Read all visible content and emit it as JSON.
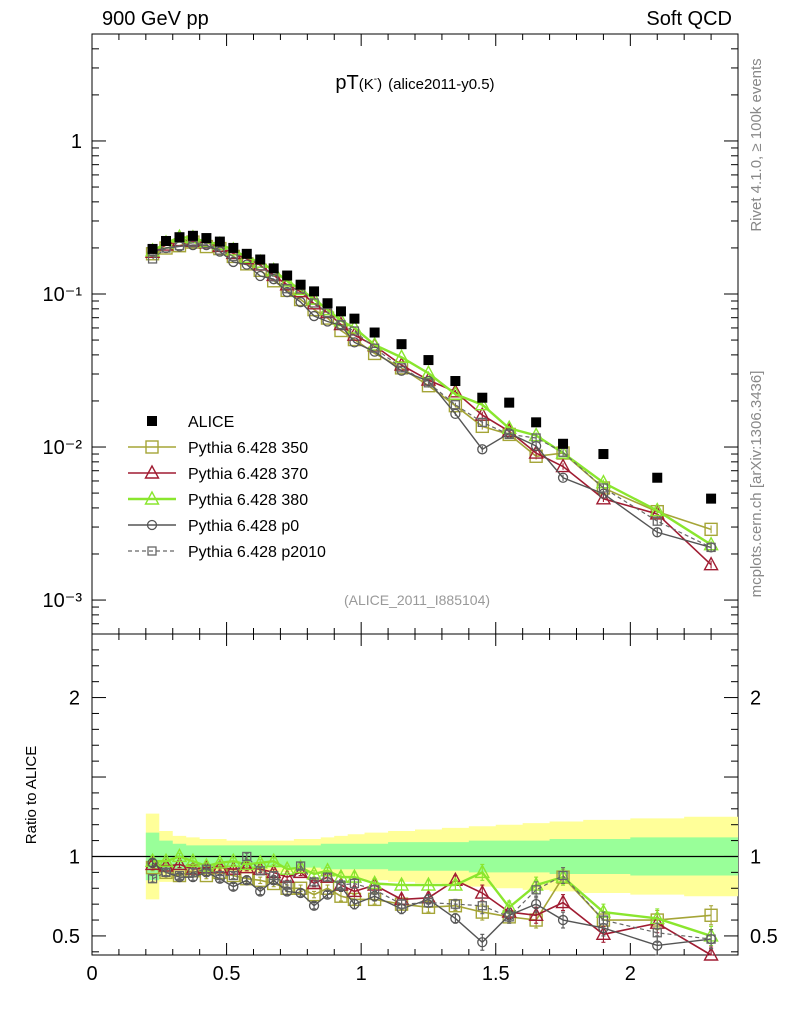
{
  "header": {
    "left": "900 GeV pp",
    "right": "Soft QCD"
  },
  "side": {
    "rivet": "Rivet 4.1.0, ≥ 100k events",
    "mcplots": "mcplots.cern.ch [arXiv:1306.3436]"
  },
  "chart_data": {
    "type": "scatter",
    "title": "pT(K⁻) (alice2011-y0.5)",
    "title_main": "pT",
    "title_paren": "(K",
    "title_sup": "-",
    "title_close": ")",
    "title_tag": "(alice2011-y0.5)",
    "analysis_id": "(ALICE_2011_I885104)",
    "xlabel": "",
    "ylabel": "",
    "ratio_ylabel": "Ratio to ALICE",
    "xlim": [
      0,
      2.4
    ],
    "ylim": [
      0.0006,
      5
    ],
    "yscale": "log",
    "ratio_ylim": [
      0.38,
      2.4
    ],
    "x_ticks": [
      "0",
      "0.5",
      "1",
      "1.5",
      "2"
    ],
    "y_ticks": [
      "1",
      "10⁻¹",
      "10⁻²",
      "10⁻³"
    ],
    "ratio_ticks": [
      "2",
      "1",
      "0.5"
    ],
    "x": [
      0.225,
      0.275,
      0.325,
      0.375,
      0.425,
      0.475,
      0.525,
      0.575,
      0.625,
      0.675,
      0.725,
      0.775,
      0.825,
      0.875,
      0.925,
      0.975,
      1.05,
      1.15,
      1.25,
      1.35,
      1.45,
      1.55,
      1.65,
      1.75,
      1.9,
      2.1,
      2.3
    ],
    "colors": {
      "alice": "#000000",
      "p350": "#a5a537",
      "p370": "#a01c32",
      "p380": "#8ae62e",
      "p0": "#555555",
      "p2010": "#666666",
      "band_outer": "#ffff99",
      "band_inner": "#99ff99"
    },
    "legend": [
      "ALICE",
      "Pythia 6.428 350",
      "Pythia 6.428 370",
      "Pythia 6.428 380",
      "Pythia 6.428 p0",
      "Pythia 6.428 p2010"
    ],
    "series": [
      {
        "name": "ALICE",
        "values": [
          0.197,
          0.222,
          0.235,
          0.24,
          0.232,
          0.22,
          0.2,
          0.183,
          0.168,
          0.147,
          0.132,
          0.115,
          0.104,
          0.087,
          0.077,
          0.069,
          0.056,
          0.047,
          0.037,
          0.027,
          0.021,
          0.0195,
          0.0145,
          0.0105,
          0.009,
          0.0063,
          0.0046
        ]
      },
      {
        "name": "Pythia 6.428 350",
        "ratio": [
          0.93,
          0.9,
          0.88,
          0.91,
          0.88,
          0.9,
          0.88,
          0.86,
          0.85,
          0.83,
          0.8,
          0.8,
          0.76,
          0.8,
          0.75,
          0.73,
          0.73,
          0.7,
          0.68,
          0.69,
          0.65,
          0.62,
          0.6,
          0.87,
          0.6,
          0.6,
          0.63
        ]
      },
      {
        "name": "Pythia 6.428 370",
        "ratio": [
          0.95,
          0.94,
          0.95,
          0.92,
          0.93,
          0.93,
          0.92,
          0.93,
          0.92,
          0.9,
          0.87,
          0.9,
          0.83,
          0.87,
          0.82,
          0.78,
          0.82,
          0.73,
          0.74,
          0.85,
          0.77,
          0.65,
          0.63,
          0.71,
          0.51,
          0.58,
          0.37
        ]
      },
      {
        "name": "Pythia 6.428 380",
        "ratio": [
          0.97,
          0.97,
          1.0,
          0.97,
          0.94,
          0.96,
          0.97,
          0.95,
          0.96,
          0.97,
          0.92,
          0.93,
          0.89,
          0.91,
          0.87,
          0.87,
          0.83,
          0.82,
          0.82,
          0.82,
          0.9,
          0.68,
          0.82,
          0.87,
          0.65,
          0.61,
          0.5
        ]
      },
      {
        "name": "Pythia 6.428 p0",
        "ratio": [
          0.96,
          0.9,
          0.87,
          0.87,
          0.9,
          0.86,
          0.81,
          0.85,
          0.78,
          0.85,
          0.78,
          0.77,
          0.69,
          0.76,
          0.81,
          0.7,
          0.75,
          0.67,
          0.73,
          0.61,
          0.46,
          0.63,
          0.7,
          0.6,
          0.55,
          0.44,
          0.48
        ]
      },
      {
        "name": "Pythia 6.428 p2010",
        "ratio": [
          0.86,
          0.9,
          0.88,
          0.9,
          0.92,
          0.88,
          0.88,
          1.0,
          0.91,
          0.88,
          0.82,
          0.94,
          0.84,
          0.87,
          0.82,
          0.83,
          0.79,
          0.7,
          0.71,
          0.7,
          0.69,
          0.62,
          0.79,
          0.88,
          0.6,
          0.52,
          0.48
        ]
      }
    ],
    "ratio_errors": [
      0.02,
      0.02,
      0.02,
      0.02,
      0.02,
      0.02,
      0.02,
      0.02,
      0.02,
      0.02,
      0.02,
      0.02,
      0.02,
      0.02,
      0.03,
      0.03,
      0.03,
      0.03,
      0.03,
      0.03,
      0.05,
      0.04,
      0.05,
      0.05,
      0.05,
      0.06,
      0.06
    ],
    "band_inner": [
      0.15,
      0.1,
      0.08,
      0.07,
      0.07,
      0.07,
      0.07,
      0.07,
      0.07,
      0.07,
      0.07,
      0.07,
      0.07,
      0.08,
      0.08,
      0.08,
      0.08,
      0.09,
      0.09,
      0.09,
      0.1,
      0.1,
      0.1,
      0.11,
      0.11,
      0.12,
      0.12
    ],
    "band_outer": [
      0.27,
      0.16,
      0.13,
      0.12,
      0.11,
      0.11,
      0.1,
      0.1,
      0.1,
      0.1,
      0.1,
      0.11,
      0.11,
      0.12,
      0.13,
      0.14,
      0.15,
      0.16,
      0.17,
      0.18,
      0.19,
      0.2,
      0.21,
      0.22,
      0.23,
      0.24,
      0.25
    ]
  }
}
